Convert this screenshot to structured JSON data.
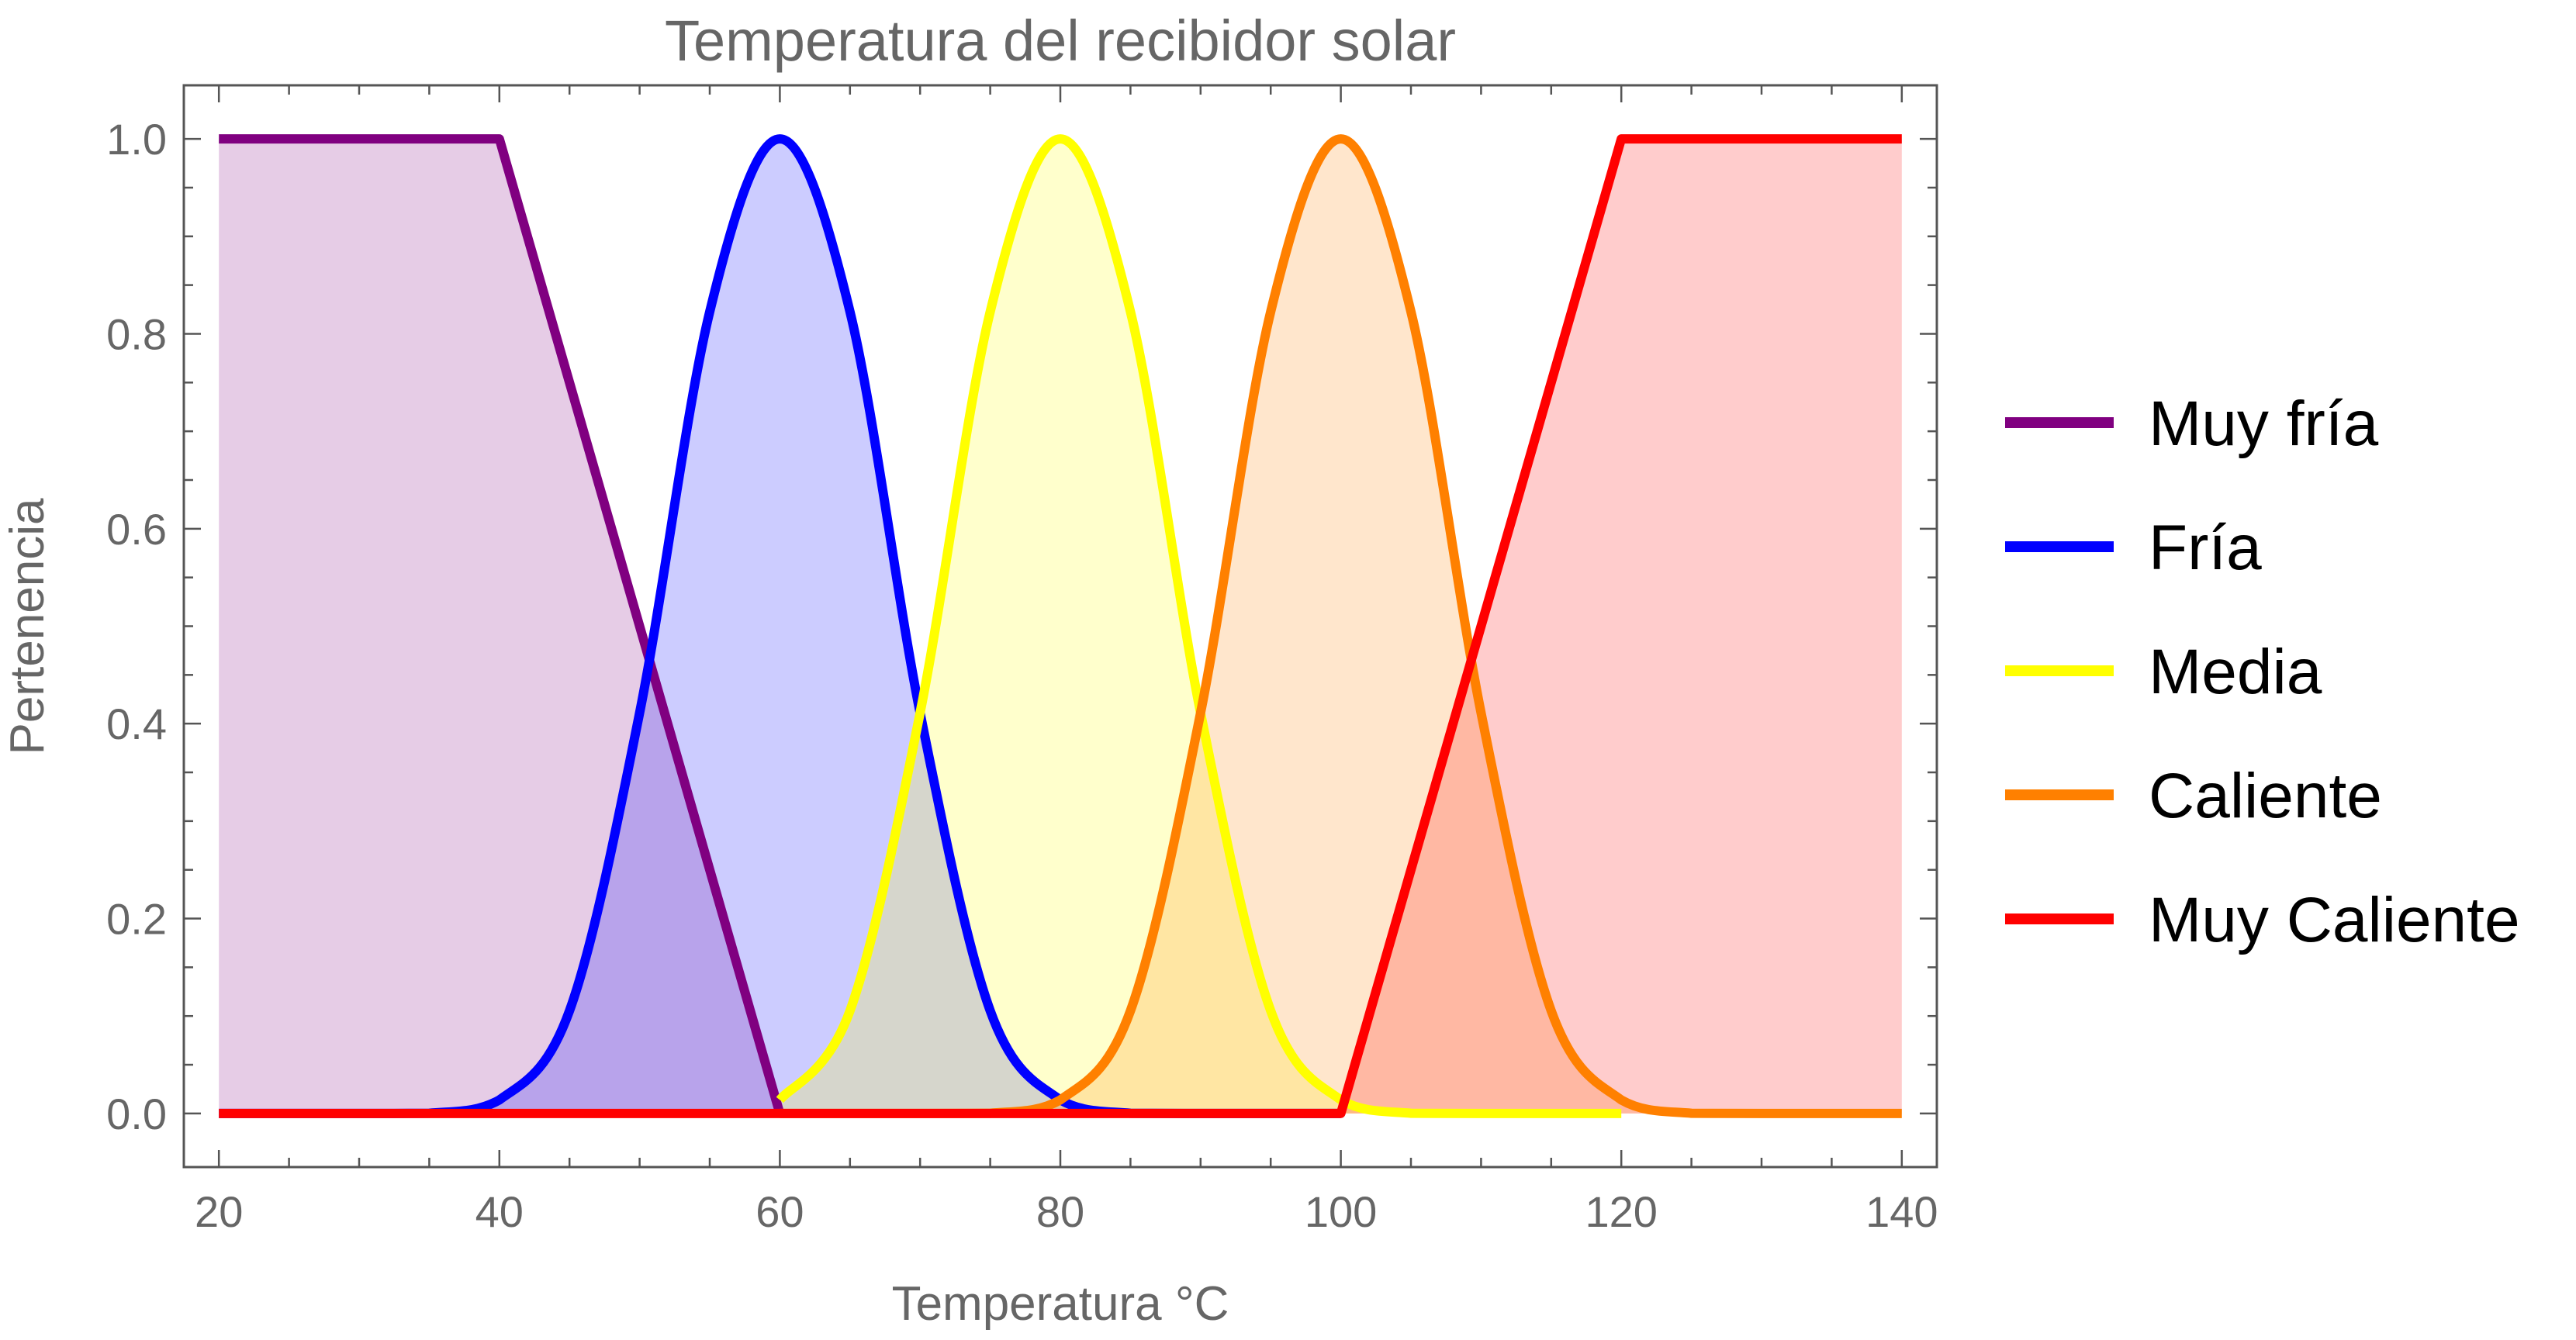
{
  "chart_data": {
    "type": "area",
    "title": "Temperatura del recibidor solar",
    "xlabel": "Temperatura °C",
    "ylabel": "Pertenencia",
    "xlim": [
      17.5,
      142.5
    ],
    "ylim": [
      -0.055,
      1.055
    ],
    "x_ticks": [
      20,
      40,
      60,
      80,
      100,
      120,
      140
    ],
    "x_tick_labels": [
      "20",
      "40",
      "60",
      "80",
      "100",
      "120",
      "140"
    ],
    "y_ticks": [
      0.0,
      0.2,
      0.4,
      0.6,
      0.8,
      1.0
    ],
    "y_tick_labels": [
      "0.0",
      "0.2",
      "0.4",
      "0.6",
      "0.8",
      "1.0"
    ],
    "grid": false,
    "legend_position": "right",
    "series": [
      {
        "name": "Muy fría",
        "color": "#800080",
        "fill": "#e6cbe6",
        "points": [
          [
            20,
            1.0
          ],
          [
            40,
            1.0
          ],
          [
            60,
            0.0
          ]
        ]
      },
      {
        "name": "Fría",
        "color": "#0000ff",
        "fill": "#c9c9ff",
        "points": [
          [
            20,
            0.0
          ],
          [
            30,
            0.0
          ],
          [
            35,
            0.0002
          ],
          [
            40,
            0.0139
          ],
          [
            45,
            0.1054
          ],
          [
            50,
            0.4111
          ],
          [
            55,
            0.8227
          ],
          [
            60,
            1.0
          ],
          [
            65,
            0.8227
          ],
          [
            70,
            0.4111
          ],
          [
            75,
            0.1054
          ],
          [
            80,
            0.0139
          ],
          [
            85,
            0.0002
          ],
          [
            90,
            0.0
          ],
          [
            100,
            0.0
          ]
        ]
      },
      {
        "name": "Media",
        "color": "#ffff00",
        "fill": "#fdfdc6",
        "points": [
          [
            60,
            0.0139
          ],
          [
            65,
            0.1054
          ],
          [
            70,
            0.4111
          ],
          [
            75,
            0.8227
          ],
          [
            80,
            1.0
          ],
          [
            85,
            0.8227
          ],
          [
            90,
            0.4111
          ],
          [
            95,
            0.1054
          ],
          [
            100,
            0.0139
          ],
          [
            105,
            0.0002
          ],
          [
            110,
            0.0
          ],
          [
            120,
            0.0
          ]
        ]
      },
      {
        "name": "Caliente",
        "color": "#ff8000",
        "fill": "#fee1c9",
        "points": [
          [
            60,
            0.0
          ],
          [
            70,
            0.0
          ],
          [
            75,
            0.0002
          ],
          [
            80,
            0.0139
          ],
          [
            85,
            0.1054
          ],
          [
            90,
            0.4111
          ],
          [
            95,
            0.8227
          ],
          [
            100,
            1.0
          ],
          [
            105,
            0.8227
          ],
          [
            110,
            0.4111
          ],
          [
            115,
            0.1054
          ],
          [
            120,
            0.0139
          ],
          [
            125,
            0.0002
          ],
          [
            130,
            0.0
          ],
          [
            140,
            0.0
          ]
        ]
      },
      {
        "name": "Muy Caliente",
        "color": "#ff0000",
        "fill": "#fecaca",
        "points": [
          [
            20,
            0.0
          ],
          [
            100,
            0.0
          ],
          [
            120,
            1.0
          ],
          [
            140,
            1.0
          ]
        ]
      }
    ]
  }
}
